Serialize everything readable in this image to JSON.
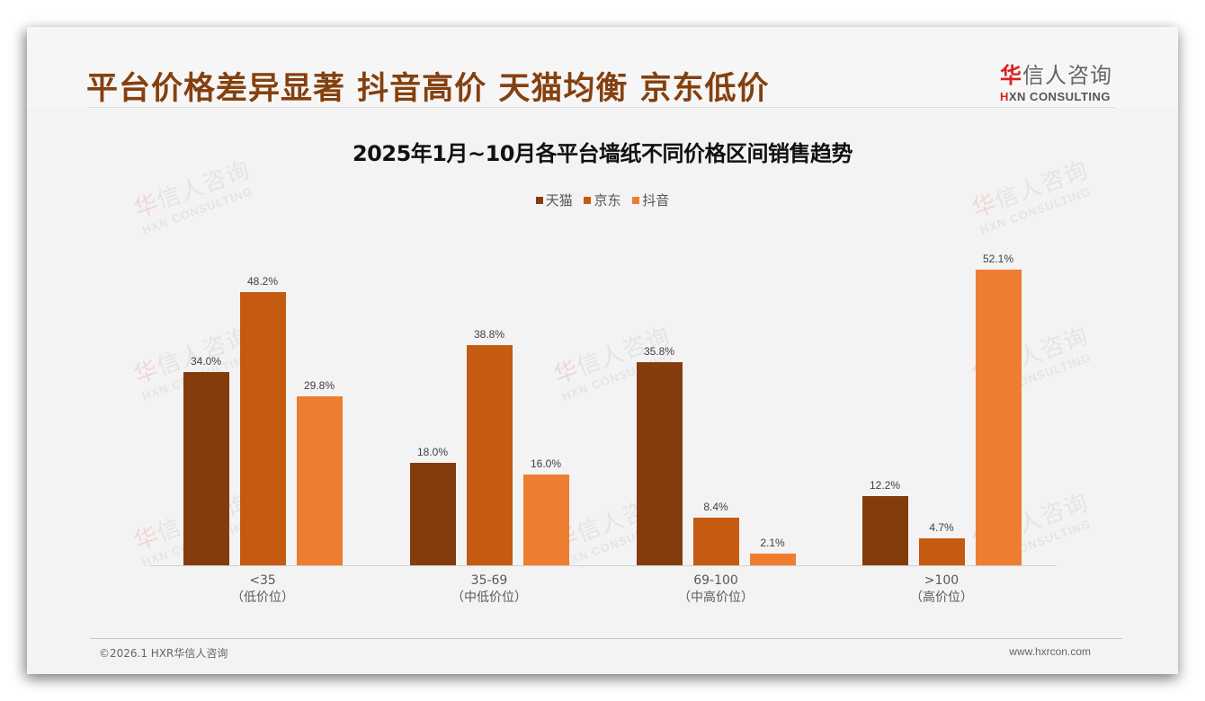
{
  "slide": {
    "headline": "平台价格差异显著 抖音高价 天猫均衡 京东低价",
    "logo": {
      "brand_first_char": "华",
      "brand_rest": "信人咨询",
      "en_first": "H",
      "en_rest": "XN CONSULTING"
    },
    "watermark": {
      "cn_first": "华",
      "cn_rest": "信人咨询",
      "en": "HXN CONSULTING"
    },
    "footer": {
      "copyright": "©2026.1 HXR华信人咨询",
      "website": "www.hxrcon.com"
    }
  },
  "colors": {
    "tmall": "#843c0c",
    "jd": "#c55a11",
    "douyin": "#ed7d31",
    "headline": "#84400f"
  },
  "chart_data": {
    "type": "bar",
    "title": "2025年1月~10月各平台墙纸不同价格区间销售趋势",
    "categories": [
      "<35",
      "35-69",
      "69-100",
      ">100"
    ],
    "category_sublabels": [
      "（低价位）",
      "（中低价位）",
      "（中高价位）",
      "（高价位）"
    ],
    "series": [
      {
        "name": "天猫",
        "color": "#843c0c",
        "values": [
          34.0,
          18.0,
          35.8,
          12.2
        ],
        "labels": [
          "34.0%",
          "18.0%",
          "35.8%",
          "12.2%"
        ]
      },
      {
        "name": "京东",
        "color": "#c55a11",
        "values": [
          48.2,
          38.8,
          8.4,
          4.7
        ],
        "labels": [
          "48.2%",
          "38.8%",
          "8.4%",
          "4.7%"
        ]
      },
      {
        "name": "抖音",
        "color": "#ed7d31",
        "values": [
          29.8,
          16.0,
          2.1,
          52.1
        ],
        "labels": [
          "29.8%",
          "16.0%",
          "2.1%",
          "52.1%"
        ]
      }
    ],
    "xlabel": "",
    "ylabel": "",
    "unit": "%",
    "ylim": [
      0,
      55
    ],
    "grid": false,
    "legend_position": "top"
  }
}
